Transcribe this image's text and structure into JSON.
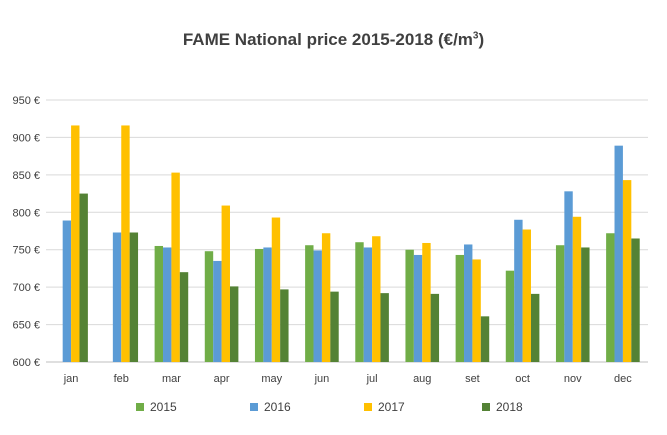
{
  "title": {
    "main": "FAME National price 2015-2018 (€/m",
    "sup": "3",
    "close": ")"
  },
  "chart_data": {
    "type": "bar",
    "title": "FAME National price 2015-2018 (€/m³)",
    "categories": [
      "jan",
      "feb",
      "mar",
      "apr",
      "may",
      "jun",
      "jul",
      "aug",
      "set",
      "oct",
      "nov",
      "dec"
    ],
    "ylim": [
      600,
      950
    ],
    "yticks": [
      600,
      650,
      700,
      750,
      800,
      850,
      900,
      950
    ],
    "ytick_labels": [
      "600 €",
      "650 €",
      "700 €",
      "750 €",
      "800 €",
      "850 €",
      "900 €",
      "950 €"
    ],
    "grid": true,
    "legend_position": "bottom",
    "series": [
      {
        "name": "2015",
        "color": "#70ad47",
        "values": [
          null,
          null,
          755,
          748,
          751,
          756,
          760,
          750,
          743,
          722,
          756,
          772
        ]
      },
      {
        "name": "2016",
        "color": "#5b9bd5",
        "values": [
          789,
          773,
          753,
          735,
          753,
          749,
          753,
          743,
          757,
          790,
          828,
          889
        ]
      },
      {
        "name": "2017",
        "color": "#ffc000",
        "values": [
          916,
          916,
          853,
          809,
          793,
          772,
          768,
          759,
          737,
          777,
          794,
          843
        ]
      },
      {
        "name": "2018",
        "color": "#548235",
        "values": [
          825,
          773,
          720,
          701,
          697,
          694,
          692,
          691,
          661,
          691,
          753,
          765
        ]
      }
    ]
  }
}
